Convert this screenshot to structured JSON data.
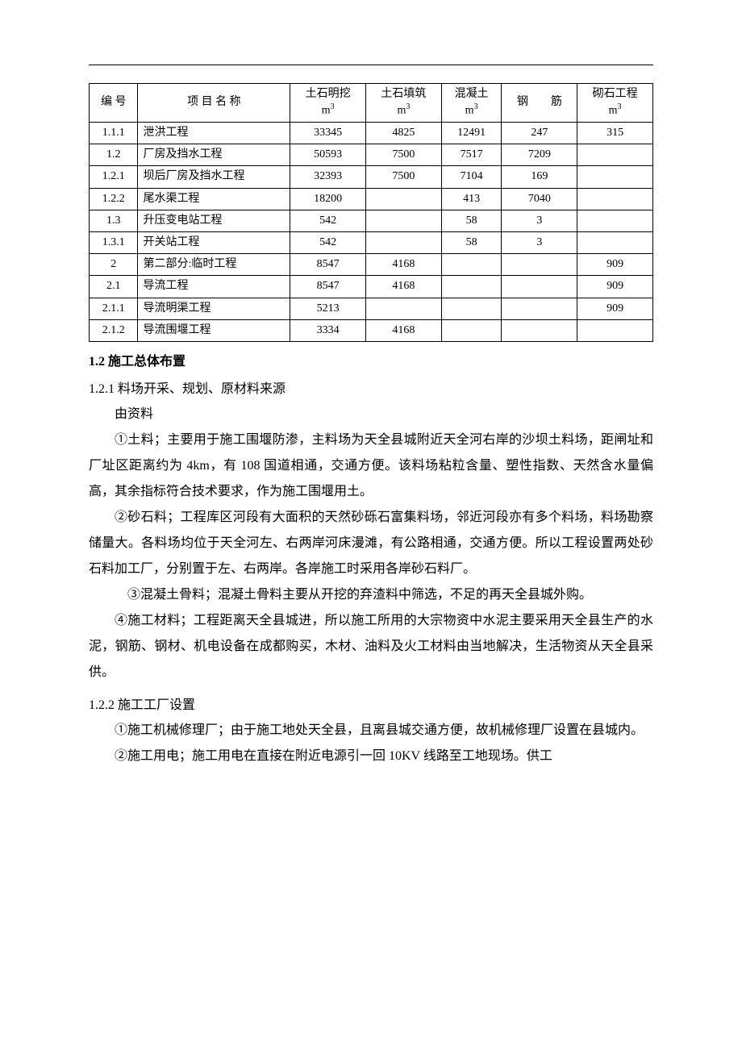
{
  "table": {
    "headers": {
      "col1": "编 号",
      "col2": "项 目 名 称",
      "col3_line1": "土石明挖",
      "col3_line2_unit": "m",
      "col3_line2_sup": "3",
      "col4_line1": "土石填筑",
      "col4_line2_unit": "m",
      "col4_line2_sup": "3",
      "col5_line1": "混凝土",
      "col5_line2_unit": "m",
      "col5_line2_sup": "3",
      "col6": "钢　　筋",
      "col7_line1": "砌石工程",
      "col7_line2_unit": "m",
      "col7_line2_sup": "3"
    },
    "rows": [
      {
        "id": "1.1.1",
        "name": "泄洪工程",
        "c3": "33345",
        "c4": "4825",
        "c5": "12491",
        "c6": "247",
        "c7": "315"
      },
      {
        "id": "1.2",
        "name": "厂房及挡水工程",
        "c3": "50593",
        "c4": "7500",
        "c5": "7517",
        "c6": "7209",
        "c7": ""
      },
      {
        "id": "1.2.1",
        "name": "坝后厂房及挡水工程",
        "c3": "32393",
        "c4": "7500",
        "c5": "7104",
        "c6": "169",
        "c7": ""
      },
      {
        "id": "1.2.2",
        "name": "尾水渠工程",
        "c3": "18200",
        "c4": "",
        "c5": "413",
        "c6": "7040",
        "c7": ""
      },
      {
        "id": "1.3",
        "name": "升压变电站工程",
        "c3": "542",
        "c4": "",
        "c5": "58",
        "c6": "3",
        "c7": ""
      },
      {
        "id": "1.3.1",
        "name": "开关站工程",
        "c3": "542",
        "c4": "",
        "c5": "58",
        "c6": "3",
        "c7": ""
      },
      {
        "id": "2",
        "name": "第二部分:临时工程",
        "c3": "8547",
        "c4": "4168",
        "c5": "",
        "c6": "",
        "c7": "909"
      },
      {
        "id": "2.1",
        "name": "导流工程",
        "c3": "8547",
        "c4": "4168",
        "c5": "",
        "c6": "",
        "c7": "909"
      },
      {
        "id": "2.1.1",
        "name": "导流明渠工程",
        "c3": "5213",
        "c4": "",
        "c5": "",
        "c6": "",
        "c7": "909"
      },
      {
        "id": "2.1.2",
        "name": "导流围堰工程",
        "c3": "3334",
        "c4": "4168",
        "c5": "",
        "c6": "",
        "c7": ""
      }
    ]
  },
  "sections": {
    "s1_2_title": "1.2 施工总体布置",
    "s1_2_1_title": "1.2.1 料场开采、规划、原材料来源",
    "s1_2_1_intro": "由资料",
    "p1": "①土料；主要用于施工围堰防渗，主料场为天全县城附近天全河右岸的沙坝土料场，距闸址和厂址区距离约为 4km，有 108 国道相通，交通方便。该料场粘粒含量、塑性指数、天然含水量偏高，其余指标符合技术要求，作为施工围堰用土。",
    "p2": "②砂石料；工程库区河段有大面积的天然砂砾石富集料场，邻近河段亦有多个料场，料场勘察储量大。各料场均位于天全河左、右两岸河床漫滩，有公路相通，交通方便。所以工程设置两处砂石料加工厂，分别置于左、右两岸。各岸施工时采用各岸砂石料厂。",
    "p3": "③混凝土骨料；混凝土骨料主要从开挖的弃渣料中筛选，不足的再天全县城外购。",
    "p4": "④施工材料；工程距离天全县城进，所以施工所用的大宗物资中水泥主要采用天全县生产的水泥，钢筋、钢材、机电设备在成都购买，木材、油料及火工材料由当地解决，生活物资从天全县采供。",
    "s1_2_2_title": "1.2.2 施工工厂设置",
    "p5": "①施工机械修理厂；由于施工地处天全县，且离县城交通方便，故机械修理厂设置在县城内。",
    "p6": "②施工用电；施工用电在直接在附近电源引一回 10KV 线路至工地现场。供工"
  }
}
